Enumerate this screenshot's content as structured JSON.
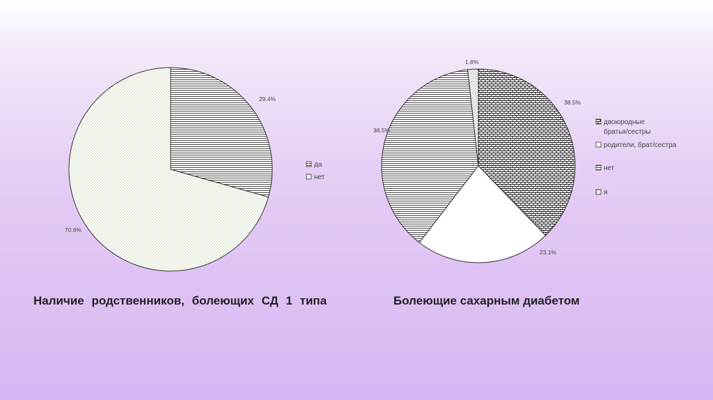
{
  "chart_data": [
    {
      "type": "pie",
      "title": "Наличие родственников, болеющих СД 1 типа",
      "slices": [
        {
          "label": "да",
          "value": 29.4,
          "value_label": "29.4%",
          "pattern": "hlines"
        },
        {
          "label": "нет",
          "value": 70.6,
          "value_label": "70.6%",
          "pattern": "dots"
        }
      ],
      "legend": [
        "да",
        "нет"
      ],
      "legend_position": "right"
    },
    {
      "type": "pie",
      "title": "Болеющие сахарным диабетом",
      "slices": [
        {
          "label": "двоюродные братья/сестры",
          "value": 38.5,
          "value_label": "38.5%",
          "pattern": "bricks"
        },
        {
          "label": "родители, брат/сестра",
          "value": 23.1,
          "value_label": "23.1%",
          "pattern": "solid"
        },
        {
          "label": "нет",
          "value": 38.5,
          "value_label": "38.5%",
          "pattern": "hlines"
        },
        {
          "label": "я",
          "value": 1.8,
          "value_label": "1.8%",
          "pattern": "dots2"
        }
      ],
      "legend": [
        "двоюродные братья/сестры",
        "родители, брат/сестра",
        "нет",
        "я"
      ],
      "legend_position": "right"
    }
  ]
}
